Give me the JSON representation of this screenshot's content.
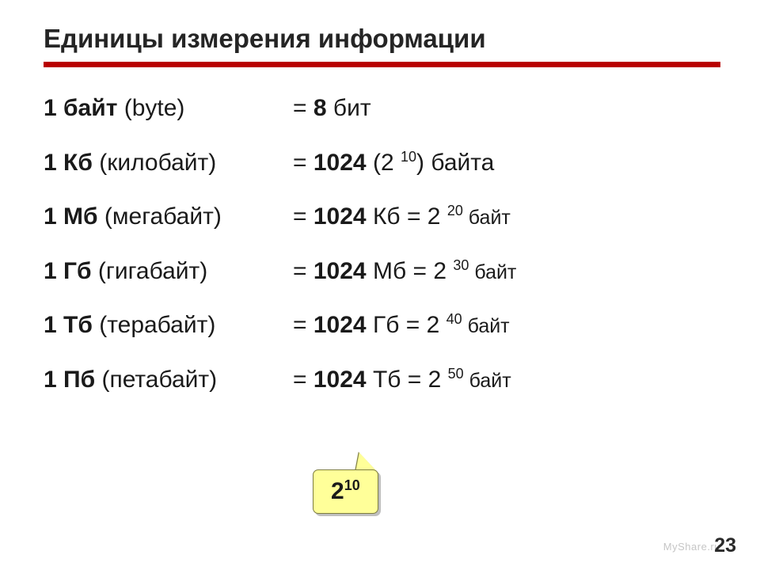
{
  "title": "Единицы измерения информации",
  "accent_color": "#b90000",
  "rows": [
    {
      "unit_num": "1",
      "unit_abbr": "байт",
      "unit_paren": "(byte)",
      "value": "8",
      "suffix1": "бит",
      "exp": "",
      "tail": ""
    },
    {
      "unit_num": "1",
      "unit_abbr": "Кб",
      "unit_paren": "(килобайт)",
      "value": "1024",
      "suffix1": "(2 ",
      "exp": "10",
      "tail": ") байта"
    },
    {
      "unit_num": "1",
      "unit_abbr": "Мб",
      "unit_paren": "(мегабайт)",
      "value": "1024",
      "suffix1": "Кб = 2 ",
      "exp": "20",
      "tail": " байт"
    },
    {
      "unit_num": "1",
      "unit_abbr": "Гб",
      "unit_paren": "(гигабайт)",
      "value": "1024",
      "suffix1": "Мб = 2 ",
      "exp": "30",
      "tail": " байт"
    },
    {
      "unit_num": "1",
      "unit_abbr": "Тб",
      "unit_paren": "(терабайт)",
      "value": "1024",
      "suffix1": "Гб = 2 ",
      "exp": "40",
      "tail": " байт"
    },
    {
      "unit_num": "1",
      "unit_abbr": "Пб",
      "unit_paren": "(петабайт)",
      "value": "1024",
      "suffix1": "Тб = 2 ",
      "exp": "50",
      "tail": " байт"
    }
  ],
  "callout": {
    "base": "2",
    "exp": "10"
  },
  "page_number": "23",
  "watermark": "MyShare.ru"
}
